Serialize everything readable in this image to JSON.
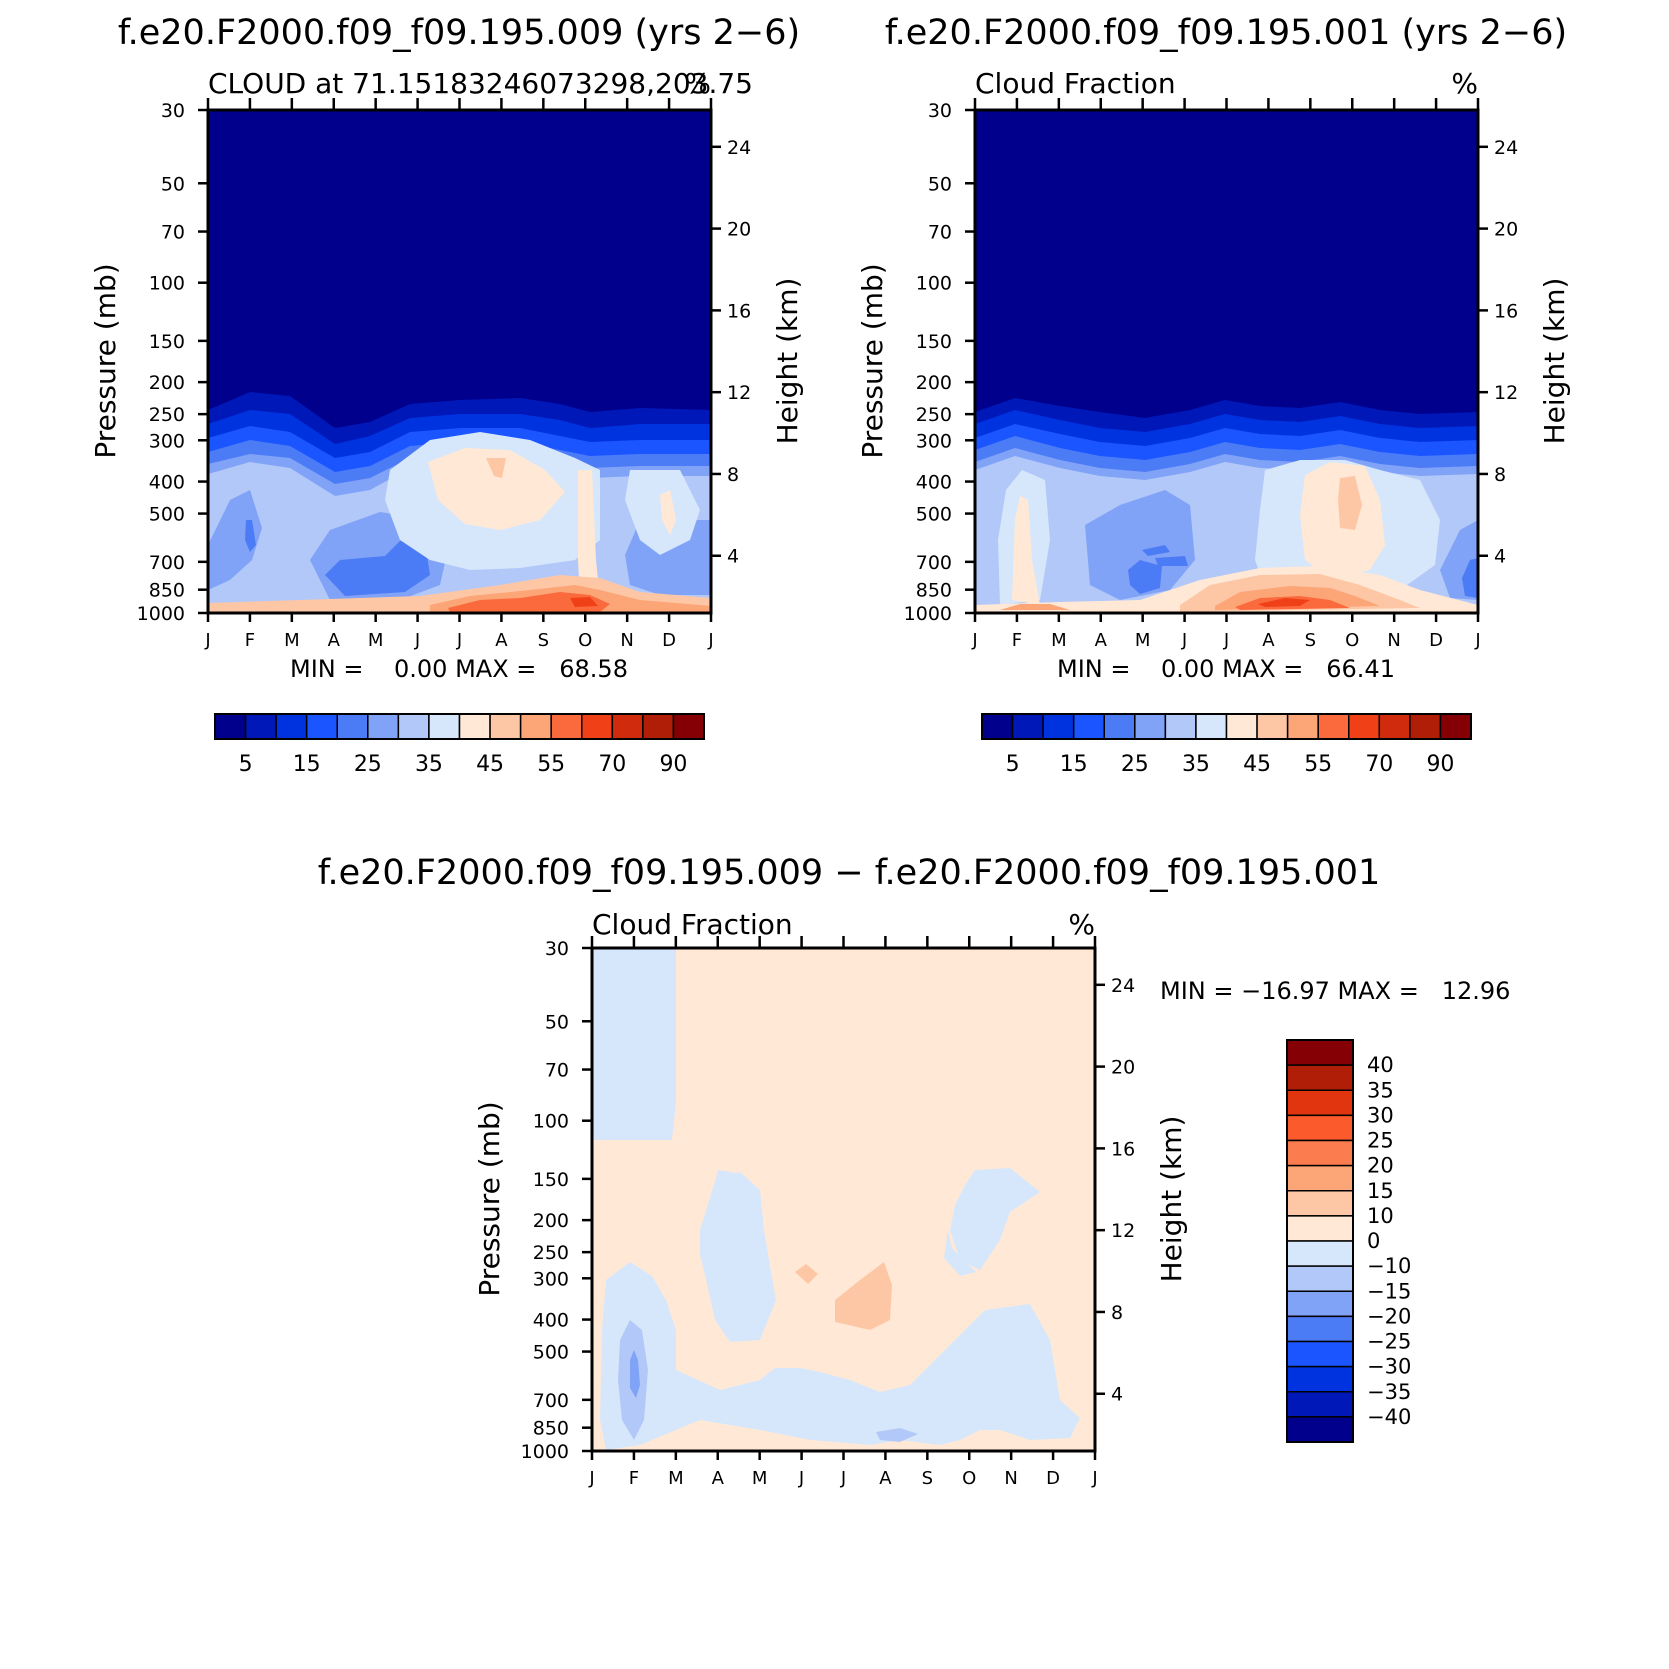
{
  "chart_data": [
    {
      "type": "heatmap",
      "id": "p1",
      "suptitle": "f.e20.F2000.f09_f09.195.009 (yrs 2−6)",
      "title_left": "CLOUD at 71.15183246073298,203.75",
      "title_right": "%",
      "ylabel": "Pressure (mb)",
      "ylabel_right": "Height (km)",
      "stats": "MIN =    0.00 MAX =   68.58",
      "min": 0.0,
      "max": 68.58,
      "months": [
        "J",
        "F",
        "M",
        "A",
        "M",
        "J",
        "J",
        "A",
        "S",
        "O",
        "N",
        "D",
        "J"
      ],
      "pressure_ticks": [
        "30",
        "50",
        "70",
        "100",
        "150",
        "200",
        "250",
        "300",
        "400",
        "500",
        "700",
        "850",
        "1000"
      ],
      "pressure_values": [
        30,
        50,
        70,
        100,
        150,
        200,
        250,
        300,
        400,
        500,
        700,
        850,
        1000
      ],
      "height_ticks": [
        "24",
        "20",
        "16",
        "12",
        "8",
        "4"
      ],
      "height_values": [
        24,
        20,
        16,
        12,
        8,
        4
      ],
      "colorbar_labels": [
        "5",
        "15",
        "25",
        "35",
        "45",
        "55",
        "70",
        "90"
      ],
      "colorbar_levels": [
        5,
        10,
        15,
        20,
        25,
        30,
        35,
        40,
        45,
        50,
        55,
        60,
        70,
        80,
        90
      ],
      "colors": [
        "#00008c",
        "#0018b8",
        "#0033e0",
        "#1a55ff",
        "#4c7cf5",
        "#80a3f7",
        "#b2c8f8",
        "#d6e7fb",
        "#ffe9d6",
        "#fdc7a6",
        "#fca577",
        "#fa6a3d",
        "#f04018",
        "#d02b0c",
        "#b11e08",
        "#850004"
      ]
    },
    {
      "type": "heatmap",
      "id": "p2",
      "suptitle": "f.e20.F2000.f09_f09.195.001 (yrs 2−6)",
      "title_left": "Cloud Fraction",
      "title_right": "%",
      "ylabel": "Pressure (mb)",
      "ylabel_right": "Height (km)",
      "stats": "MIN =    0.00 MAX =   66.41",
      "min": 0.0,
      "max": 66.41,
      "months": [
        "J",
        "F",
        "M",
        "A",
        "M",
        "J",
        "J",
        "A",
        "S",
        "O",
        "N",
        "D",
        "J"
      ],
      "pressure_ticks": [
        "30",
        "50",
        "70",
        "100",
        "150",
        "200",
        "250",
        "300",
        "400",
        "500",
        "700",
        "850",
        "1000"
      ],
      "pressure_values": [
        30,
        50,
        70,
        100,
        150,
        200,
        250,
        300,
        400,
        500,
        700,
        850,
        1000
      ],
      "height_ticks": [
        "24",
        "20",
        "16",
        "12",
        "8",
        "4"
      ],
      "height_values": [
        24,
        20,
        16,
        12,
        8,
        4
      ],
      "colorbar_labels": [
        "5",
        "15",
        "25",
        "35",
        "45",
        "55",
        "70",
        "90"
      ],
      "colorbar_levels": [
        5,
        10,
        15,
        20,
        25,
        30,
        35,
        40,
        45,
        50,
        55,
        60,
        70,
        80,
        90
      ]
    },
    {
      "type": "heatmap",
      "id": "p3",
      "suptitle": "f.e20.F2000.f09_f09.195.009 − f.e20.F2000.f09_f09.195.001",
      "title_left": "Cloud Fraction",
      "title_right": "%",
      "ylabel": "Pressure (mb)",
      "ylabel_right": "Height (km)",
      "stats": "MIN = −16.97 MAX =   12.96",
      "min": -16.97,
      "max": 12.96,
      "months": [
        "J",
        "F",
        "M",
        "A",
        "M",
        "J",
        "J",
        "A",
        "S",
        "O",
        "N",
        "D",
        "J"
      ],
      "pressure_ticks": [
        "30",
        "50",
        "70",
        "100",
        "150",
        "200",
        "250",
        "300",
        "400",
        "500",
        "700",
        "850",
        "1000"
      ],
      "pressure_values": [
        30,
        50,
        70,
        100,
        150,
        200,
        250,
        300,
        400,
        500,
        700,
        850,
        1000
      ],
      "height_ticks": [
        "24",
        "20",
        "16",
        "12",
        "8",
        "4"
      ],
      "height_values": [
        24,
        20,
        16,
        12,
        8,
        4
      ],
      "colorbar_labels": [
        "40",
        "35",
        "30",
        "25",
        "20",
        "15",
        "10",
        "0",
        "−10",
        "−15",
        "−20",
        "−25",
        "−30",
        "−35",
        "−40"
      ],
      "colorbar_levels": [
        40,
        35,
        30,
        25,
        20,
        15,
        10,
        0,
        -10,
        -15,
        -20,
        -25,
        -30,
        -35,
        -40
      ],
      "colors": [
        "#850004",
        "#b11e08",
        "#e0350f",
        "#fa5a2c",
        "#fb7d4f",
        "#fca577",
        "#fdc7a6",
        "#ffe9d6",
        "#d6e7fb",
        "#b2c8f8",
        "#80a3f7",
        "#4c7cf5",
        "#1a55ff",
        "#0033e0",
        "#0018b8",
        "#00008c"
      ]
    }
  ]
}
